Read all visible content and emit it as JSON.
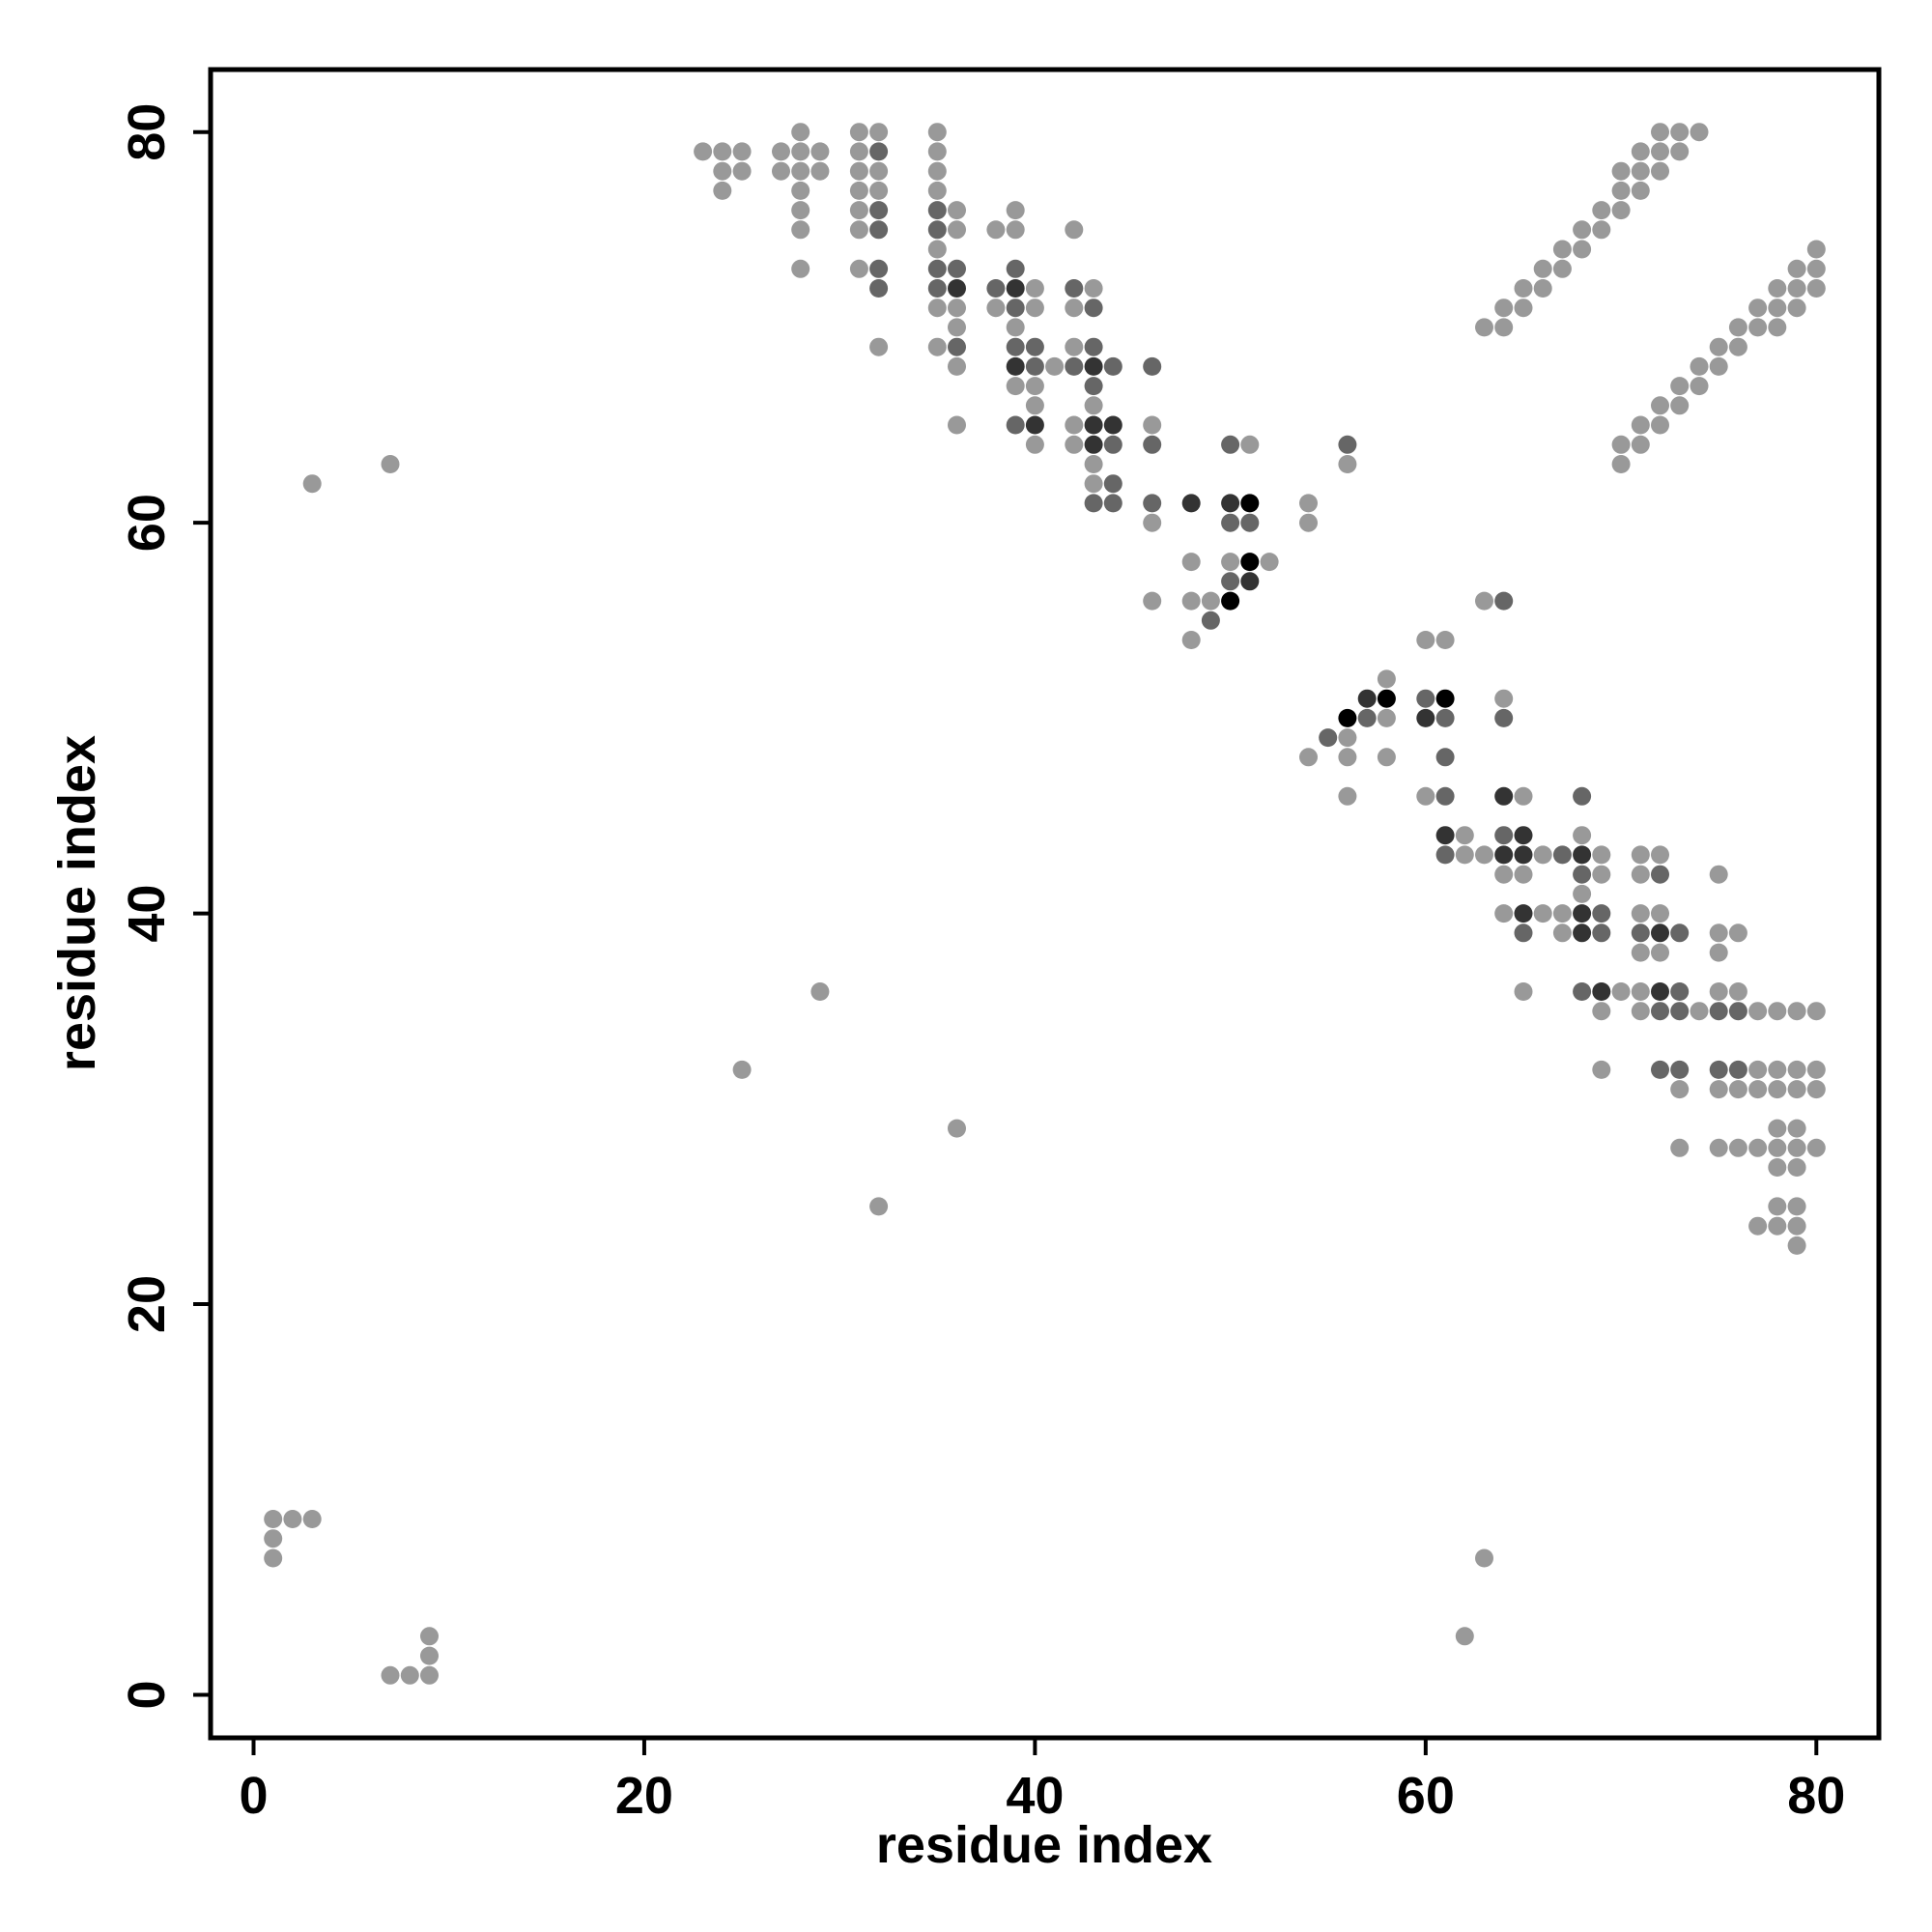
{
  "chart_data": {
    "type": "scatter",
    "title": "",
    "xlabel": "residue index",
    "ylabel": "residue index",
    "xlim": [
      -2.2,
      83.2
    ],
    "ylim": [
      -2.2,
      83.2
    ],
    "xticks": [
      0,
      20,
      40,
      60,
      80
    ],
    "yticks": [
      0,
      20,
      40,
      60,
      80
    ],
    "grid": false,
    "legend": "none",
    "colors": {
      "light": "#999999",
      "medium": "#666666",
      "dark": "#333333",
      "black": "#000000"
    },
    "points": [
      [
        1,
        9,
        "light"
      ],
      [
        2,
        9,
        "light"
      ],
      [
        3,
        9,
        "light"
      ],
      [
        1,
        8,
        "light"
      ],
      [
        1,
        7,
        "light"
      ],
      [
        7,
        1,
        "light"
      ],
      [
        8,
        1,
        "light"
      ],
      [
        9,
        1,
        "light"
      ],
      [
        9,
        2,
        "light"
      ],
      [
        9,
        3,
        "light"
      ],
      [
        3,
        62,
        "light"
      ],
      [
        7,
        63,
        "light"
      ],
      [
        25,
        32,
        "light"
      ],
      [
        29,
        36,
        "light"
      ],
      [
        32,
        25,
        "light"
      ],
      [
        36,
        29,
        "light"
      ],
      [
        62,
        3,
        "light"
      ],
      [
        63,
        7,
        "light"
      ],
      [
        23,
        79,
        "light"
      ],
      [
        24,
        79,
        "light"
      ],
      [
        25,
        79,
        "light"
      ],
      [
        24,
        78,
        "light"
      ],
      [
        25,
        78,
        "light"
      ],
      [
        24,
        77,
        "light"
      ],
      [
        27,
        79,
        "light"
      ],
      [
        28,
        80,
        "light"
      ],
      [
        28,
        79,
        "light"
      ],
      [
        29,
        79,
        "light"
      ],
      [
        27,
        78,
        "light"
      ],
      [
        28,
        78,
        "light"
      ],
      [
        29,
        78,
        "light"
      ],
      [
        28,
        77,
        "light"
      ],
      [
        28,
        76,
        "light"
      ],
      [
        28,
        75,
        "light"
      ],
      [
        28,
        73,
        "light"
      ],
      [
        31,
        80,
        "light"
      ],
      [
        32,
        80,
        "light"
      ],
      [
        31,
        79,
        "light"
      ],
      [
        32,
        79,
        "medium"
      ],
      [
        31,
        78,
        "light"
      ],
      [
        32,
        78,
        "light"
      ],
      [
        31,
        77,
        "light"
      ],
      [
        32,
        77,
        "light"
      ],
      [
        31,
        76,
        "light"
      ],
      [
        32,
        76,
        "medium"
      ],
      [
        31,
        75,
        "light"
      ],
      [
        32,
        75,
        "medium"
      ],
      [
        31,
        73,
        "light"
      ],
      [
        32,
        73,
        "medium"
      ],
      [
        32,
        72,
        "medium"
      ],
      [
        32,
        69,
        "light"
      ],
      [
        35,
        80,
        "light"
      ],
      [
        35,
        79,
        "light"
      ],
      [
        35,
        78,
        "light"
      ],
      [
        35,
        77,
        "light"
      ],
      [
        35,
        76,
        "medium"
      ],
      [
        36,
        76,
        "light"
      ],
      [
        35,
        75,
        "medium"
      ],
      [
        36,
        75,
        "light"
      ],
      [
        35,
        74,
        "light"
      ],
      [
        35,
        73,
        "medium"
      ],
      [
        36,
        73,
        "medium"
      ],
      [
        35,
        72,
        "medium"
      ],
      [
        36,
        72,
        "dark"
      ],
      [
        35,
        71,
        "light"
      ],
      [
        36,
        71,
        "light"
      ],
      [
        36,
        70,
        "light"
      ],
      [
        35,
        69,
        "light"
      ],
      [
        36,
        69,
        "medium"
      ],
      [
        36,
        68,
        "light"
      ],
      [
        36,
        65,
        "light"
      ],
      [
        38,
        75,
        "light"
      ],
      [
        39,
        76,
        "light"
      ],
      [
        39,
        75,
        "light"
      ],
      [
        39,
        73,
        "medium"
      ],
      [
        38,
        72,
        "medium"
      ],
      [
        39,
        72,
        "dark"
      ],
      [
        40,
        72,
        "light"
      ],
      [
        38,
        71,
        "light"
      ],
      [
        39,
        71,
        "medium"
      ],
      [
        40,
        71,
        "light"
      ],
      [
        39,
        70,
        "light"
      ],
      [
        39,
        69,
        "medium"
      ],
      [
        40,
        69,
        "medium"
      ],
      [
        39,
        68,
        "dark"
      ],
      [
        40,
        68,
        "medium"
      ],
      [
        41,
        68,
        "light"
      ],
      [
        39,
        67,
        "light"
      ],
      [
        40,
        67,
        "light"
      ],
      [
        40,
        66,
        "light"
      ],
      [
        39,
        65,
        "medium"
      ],
      [
        40,
        65,
        "dark"
      ],
      [
        40,
        64,
        "light"
      ],
      [
        42,
        75,
        "light"
      ],
      [
        42,
        72,
        "medium"
      ],
      [
        43,
        72,
        "light"
      ],
      [
        42,
        71,
        "light"
      ],
      [
        43,
        71,
        "medium"
      ],
      [
        42,
        69,
        "light"
      ],
      [
        43,
        69,
        "medium"
      ],
      [
        42,
        68,
        "medium"
      ],
      [
        43,
        68,
        "dark"
      ],
      [
        44,
        68,
        "medium"
      ],
      [
        43,
        67,
        "medium"
      ],
      [
        43,
        66,
        "light"
      ],
      [
        42,
        65,
        "light"
      ],
      [
        43,
        65,
        "dark"
      ],
      [
        44,
        65,
        "dark"
      ],
      [
        42,
        64,
        "light"
      ],
      [
        43,
        64,
        "dark"
      ],
      [
        44,
        64,
        "medium"
      ],
      [
        43,
        63,
        "light"
      ],
      [
        43,
        62,
        "light"
      ],
      [
        44,
        62,
        "medium"
      ],
      [
        43,
        61,
        "medium"
      ],
      [
        44,
        61,
        "medium"
      ],
      [
        46,
        68,
        "medium"
      ],
      [
        46,
        65,
        "light"
      ],
      [
        46,
        64,
        "medium"
      ],
      [
        46,
        61,
        "medium"
      ],
      [
        46,
        60,
        "light"
      ],
      [
        46,
        56,
        "light"
      ],
      [
        48,
        61,
        "dark"
      ],
      [
        48,
        58,
        "light"
      ],
      [
        48,
        56,
        "light"
      ],
      [
        48,
        54,
        "light"
      ],
      [
        49,
        56,
        "light"
      ],
      [
        49,
        55,
        "medium"
      ],
      [
        50,
        64,
        "medium"
      ],
      [
        51,
        64,
        "light"
      ],
      [
        50,
        61,
        "dark"
      ],
      [
        51,
        61,
        "black"
      ],
      [
        50,
        60,
        "medium"
      ],
      [
        51,
        60,
        "medium"
      ],
      [
        50,
        58,
        "light"
      ],
      [
        51,
        58,
        "black"
      ],
      [
        52,
        58,
        "light"
      ],
      [
        50,
        57,
        "medium"
      ],
      [
        51,
        57,
        "dark"
      ],
      [
        50,
        56,
        "black"
      ],
      [
        54,
        61,
        "light"
      ],
      [
        54,
        60,
        "light"
      ],
      [
        56,
        64,
        "medium"
      ],
      [
        56,
        63,
        "light"
      ],
      [
        54,
        48,
        "light"
      ],
      [
        55,
        49,
        "medium"
      ],
      [
        56,
        49,
        "light"
      ],
      [
        56,
        48,
        "light"
      ],
      [
        56,
        46,
        "light"
      ],
      [
        56,
        50,
        "black"
      ],
      [
        57,
        51,
        "dark"
      ],
      [
        58,
        51,
        "black"
      ],
      [
        57,
        50,
        "medium"
      ],
      [
        58,
        50,
        "light"
      ],
      [
        58,
        52,
        "light"
      ],
      [
        58,
        48,
        "light"
      ],
      [
        60,
        54,
        "light"
      ],
      [
        61,
        54,
        "light"
      ],
      [
        60,
        51,
        "medium"
      ],
      [
        61,
        51,
        "black"
      ],
      [
        60,
        50,
        "dark"
      ],
      [
        61,
        50,
        "medium"
      ],
      [
        61,
        48,
        "medium"
      ],
      [
        60,
        46,
        "light"
      ],
      [
        61,
        46,
        "medium"
      ],
      [
        61,
        44,
        "dark"
      ],
      [
        62,
        44,
        "light"
      ],
      [
        61,
        43,
        "medium"
      ],
      [
        62,
        43,
        "light"
      ],
      [
        63,
        43,
        "light"
      ],
      [
        63,
        56,
        "light"
      ],
      [
        64,
        56,
        "medium"
      ],
      [
        64,
        51,
        "light"
      ],
      [
        64,
        50,
        "medium"
      ],
      [
        64,
        46,
        "dark"
      ],
      [
        65,
        46,
        "light"
      ],
      [
        64,
        44,
        "medium"
      ],
      [
        65,
        44,
        "dark"
      ],
      [
        64,
        43,
        "dark"
      ],
      [
        65,
        43,
        "dark"
      ],
      [
        66,
        43,
        "light"
      ],
      [
        64,
        42,
        "light"
      ],
      [
        65,
        42,
        "light"
      ],
      [
        64,
        40,
        "light"
      ],
      [
        65,
        40,
        "dark"
      ],
      [
        66,
        40,
        "light"
      ],
      [
        65,
        39,
        "medium"
      ],
      [
        65,
        36,
        "light"
      ],
      [
        67,
        43,
        "medium"
      ],
      [
        67,
        40,
        "light"
      ],
      [
        67,
        39,
        "light"
      ],
      [
        68,
        46,
        "medium"
      ],
      [
        68,
        44,
        "light"
      ],
      [
        68,
        43,
        "dark"
      ],
      [
        69,
        43,
        "light"
      ],
      [
        68,
        42,
        "medium"
      ],
      [
        69,
        42,
        "light"
      ],
      [
        68,
        41,
        "light"
      ],
      [
        68,
        40,
        "dark"
      ],
      [
        69,
        40,
        "medium"
      ],
      [
        68,
        39,
        "dark"
      ],
      [
        69,
        39,
        "medium"
      ],
      [
        68,
        36,
        "medium"
      ],
      [
        69,
        36,
        "dark"
      ],
      [
        70,
        36,
        "light"
      ],
      [
        69,
        35,
        "light"
      ],
      [
        69,
        32,
        "light"
      ],
      [
        71,
        43,
        "light"
      ],
      [
        72,
        43,
        "light"
      ],
      [
        71,
        42,
        "light"
      ],
      [
        72,
        42,
        "medium"
      ],
      [
        71,
        40,
        "light"
      ],
      [
        72,
        40,
        "light"
      ],
      [
        71,
        39,
        "medium"
      ],
      [
        72,
        39,
        "dark"
      ],
      [
        73,
        39,
        "medium"
      ],
      [
        71,
        38,
        "light"
      ],
      [
        72,
        38,
        "light"
      ],
      [
        71,
        36,
        "light"
      ],
      [
        72,
        36,
        "dark"
      ],
      [
        73,
        36,
        "medium"
      ],
      [
        71,
        35,
        "light"
      ],
      [
        72,
        35,
        "medium"
      ],
      [
        73,
        35,
        "medium"
      ],
      [
        74,
        35,
        "light"
      ],
      [
        72,
        32,
        "medium"
      ],
      [
        73,
        32,
        "medium"
      ],
      [
        73,
        31,
        "light"
      ],
      [
        73,
        28,
        "light"
      ],
      [
        75,
        42,
        "light"
      ],
      [
        75,
        39,
        "light"
      ],
      [
        76,
        39,
        "light"
      ],
      [
        75,
        38,
        "light"
      ],
      [
        75,
        36,
        "light"
      ],
      [
        76,
        36,
        "light"
      ],
      [
        75,
        35,
        "medium"
      ],
      [
        76,
        35,
        "medium"
      ],
      [
        77,
        35,
        "light"
      ],
      [
        78,
        35,
        "light"
      ],
      [
        79,
        35,
        "light"
      ],
      [
        80,
        35,
        "light"
      ],
      [
        75,
        32,
        "medium"
      ],
      [
        76,
        32,
        "medium"
      ],
      [
        77,
        32,
        "light"
      ],
      [
        78,
        32,
        "light"
      ],
      [
        79,
        32,
        "light"
      ],
      [
        80,
        32,
        "light"
      ],
      [
        75,
        31,
        "light"
      ],
      [
        76,
        31,
        "light"
      ],
      [
        77,
        31,
        "light"
      ],
      [
        78,
        31,
        "light"
      ],
      [
        79,
        31,
        "light"
      ],
      [
        80,
        31,
        "light"
      ],
      [
        75,
        28,
        "light"
      ],
      [
        76,
        28,
        "light"
      ],
      [
        77,
        28,
        "light"
      ],
      [
        78,
        29,
        "light"
      ],
      [
        79,
        29,
        "light"
      ],
      [
        78,
        28,
        "light"
      ],
      [
        79,
        28,
        "light"
      ],
      [
        80,
        28,
        "light"
      ],
      [
        78,
        27,
        "light"
      ],
      [
        79,
        27,
        "light"
      ],
      [
        78,
        25,
        "light"
      ],
      [
        79,
        25,
        "light"
      ],
      [
        77,
        24,
        "light"
      ],
      [
        78,
        24,
        "light"
      ],
      [
        79,
        24,
        "light"
      ],
      [
        79,
        23,
        "light"
      ],
      [
        63,
        70,
        "light"
      ],
      [
        64,
        70,
        "light"
      ],
      [
        64,
        71,
        "light"
      ],
      [
        65,
        71,
        "light"
      ],
      [
        65,
        72,
        "light"
      ],
      [
        66,
        72,
        "light"
      ],
      [
        66,
        73,
        "light"
      ],
      [
        67,
        73,
        "light"
      ],
      [
        67,
        74,
        "light"
      ],
      [
        68,
        74,
        "light"
      ],
      [
        68,
        75,
        "light"
      ],
      [
        69,
        75,
        "light"
      ],
      [
        69,
        76,
        "light"
      ],
      [
        70,
        76,
        "light"
      ],
      [
        70,
        77,
        "light"
      ],
      [
        71,
        77,
        "light"
      ],
      [
        70,
        78,
        "light"
      ],
      [
        71,
        78,
        "light"
      ],
      [
        72,
        78,
        "light"
      ],
      [
        71,
        79,
        "light"
      ],
      [
        72,
        79,
        "light"
      ],
      [
        73,
        79,
        "light"
      ],
      [
        72,
        80,
        "light"
      ],
      [
        73,
        80,
        "light"
      ],
      [
        74,
        80,
        "light"
      ],
      [
        70,
        63,
        "light"
      ],
      [
        70,
        64,
        "light"
      ],
      [
        71,
        64,
        "light"
      ],
      [
        71,
        65,
        "light"
      ],
      [
        72,
        65,
        "light"
      ],
      [
        72,
        66,
        "light"
      ],
      [
        73,
        66,
        "light"
      ],
      [
        73,
        67,
        "light"
      ],
      [
        74,
        67,
        "light"
      ],
      [
        74,
        68,
        "light"
      ],
      [
        75,
        68,
        "light"
      ],
      [
        75,
        69,
        "light"
      ],
      [
        76,
        69,
        "light"
      ],
      [
        76,
        70,
        "light"
      ],
      [
        77,
        70,
        "light"
      ],
      [
        78,
        70,
        "light"
      ],
      [
        77,
        71,
        "light"
      ],
      [
        78,
        71,
        "light"
      ],
      [
        79,
        71,
        "light"
      ],
      [
        78,
        72,
        "light"
      ],
      [
        79,
        72,
        "light"
      ],
      [
        80,
        72,
        "light"
      ],
      [
        79,
        73,
        "light"
      ],
      [
        80,
        73,
        "light"
      ],
      [
        80,
        74,
        "light"
      ]
    ]
  }
}
